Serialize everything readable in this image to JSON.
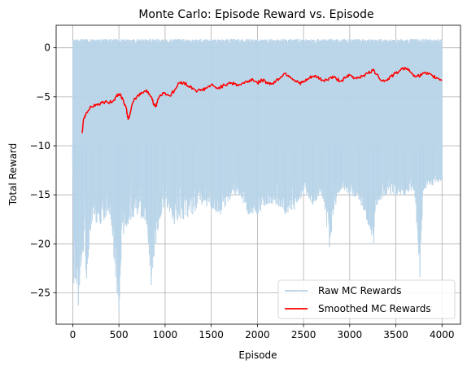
{
  "chart_data": {
    "type": "line",
    "title": "Monte Carlo: Episode Reward vs. Episode",
    "xlabel": "Episode",
    "ylabel": "Total Reward",
    "xlim": [
      -180,
      4200
    ],
    "ylim": [
      -28.2,
      2.3
    ],
    "xticks": [
      0,
      500,
      1000,
      1500,
      2000,
      2500,
      3000,
      3500,
      4000
    ],
    "yticks": [
      0,
      -5,
      -10,
      -15,
      -20,
      -25
    ],
    "grid": true,
    "legend_position": "lower-right",
    "series": [
      {
        "name": "Raw MC Rewards",
        "color": "#b7d3e8",
        "upper_envelope": [
          [
            0,
            0.9
          ],
          [
            4000,
            0.9
          ]
        ],
        "lower_envelope": [
          [
            0,
            -12
          ],
          [
            10,
            -24
          ],
          [
            30,
            -23.5
          ],
          [
            60,
            -26.3
          ],
          [
            100,
            -21
          ],
          [
            150,
            -23.5
          ],
          [
            200,
            -18
          ],
          [
            300,
            -18
          ],
          [
            400,
            -17
          ],
          [
            480,
            -25
          ],
          [
            500,
            -26.9
          ],
          [
            550,
            -19
          ],
          [
            600,
            -18
          ],
          [
            700,
            -17
          ],
          [
            800,
            -18
          ],
          [
            850,
            -24.2
          ],
          [
            900,
            -20
          ],
          [
            1000,
            -16
          ],
          [
            1100,
            -18
          ],
          [
            1200,
            -17.5
          ],
          [
            1300,
            -17
          ],
          [
            1400,
            -16
          ],
          [
            1500,
            -16.5
          ],
          [
            1600,
            -17
          ],
          [
            1700,
            -15.5
          ],
          [
            1800,
            -15
          ],
          [
            1900,
            -17
          ],
          [
            2000,
            -17
          ],
          [
            2100,
            -16
          ],
          [
            2200,
            -16
          ],
          [
            2300,
            -17
          ],
          [
            2400,
            -16.5
          ],
          [
            2500,
            -15
          ],
          [
            2600,
            -16
          ],
          [
            2700,
            -15
          ],
          [
            2780,
            -20.3
          ],
          [
            2850,
            -16
          ],
          [
            2900,
            -14.5
          ],
          [
            3000,
            -15
          ],
          [
            3100,
            -15.5
          ],
          [
            3200,
            -18
          ],
          [
            3260,
            -19.9
          ],
          [
            3300,
            -16
          ],
          [
            3400,
            -15
          ],
          [
            3500,
            -15
          ],
          [
            3600,
            -15
          ],
          [
            3700,
            -14.5
          ],
          [
            3760,
            -23.4
          ],
          [
            3800,
            -14.5
          ],
          [
            3900,
            -14
          ],
          [
            4000,
            -13.5
          ]
        ]
      },
      {
        "name": "Smoothed MC Rewards",
        "color": "#ff0000",
        "points": [
          [
            100,
            -8.7
          ],
          [
            120,
            -7.2
          ],
          [
            150,
            -6.6
          ],
          [
            200,
            -6.0
          ],
          [
            250,
            -5.8
          ],
          [
            300,
            -5.7
          ],
          [
            350,
            -5.5
          ],
          [
            400,
            -5.6
          ],
          [
            450,
            -5.3
          ],
          [
            480,
            -4.8
          ],
          [
            510,
            -4.7
          ],
          [
            550,
            -5.4
          ],
          [
            580,
            -6.2
          ],
          [
            600,
            -7.3
          ],
          [
            620,
            -6.8
          ],
          [
            650,
            -5.6
          ],
          [
            700,
            -4.9
          ],
          [
            750,
            -4.6
          ],
          [
            800,
            -4.3
          ],
          [
            850,
            -5.0
          ],
          [
            880,
            -5.8
          ],
          [
            900,
            -6.0
          ],
          [
            920,
            -5.3
          ],
          [
            950,
            -4.8
          ],
          [
            1000,
            -4.6
          ],
          [
            1050,
            -4.9
          ],
          [
            1100,
            -4.4
          ],
          [
            1150,
            -3.6
          ],
          [
            1200,
            -3.5
          ],
          [
            1250,
            -3.9
          ],
          [
            1300,
            -4.1
          ],
          [
            1350,
            -4.4
          ],
          [
            1400,
            -4.3
          ],
          [
            1450,
            -4.1
          ],
          [
            1500,
            -3.8
          ],
          [
            1550,
            -4.1
          ],
          [
            1600,
            -4.0
          ],
          [
            1650,
            -3.8
          ],
          [
            1700,
            -3.5
          ],
          [
            1750,
            -3.7
          ],
          [
            1800,
            -3.8
          ],
          [
            1850,
            -3.6
          ],
          [
            1900,
            -3.4
          ],
          [
            1950,
            -3.2
          ],
          [
            2000,
            -3.6
          ],
          [
            2050,
            -3.3
          ],
          [
            2100,
            -3.5
          ],
          [
            2150,
            -3.7
          ],
          [
            2200,
            -3.4
          ],
          [
            2250,
            -3.0
          ],
          [
            2300,
            -2.6
          ],
          [
            2350,
            -2.9
          ],
          [
            2400,
            -3.3
          ],
          [
            2450,
            -3.6
          ],
          [
            2500,
            -3.5
          ],
          [
            2550,
            -3.2
          ],
          [
            2600,
            -2.9
          ],
          [
            2650,
            -3.0
          ],
          [
            2700,
            -3.3
          ],
          [
            2750,
            -3.3
          ],
          [
            2800,
            -3.0
          ],
          [
            2850,
            -3.1
          ],
          [
            2900,
            -3.4
          ],
          [
            2950,
            -3.1
          ],
          [
            3000,
            -2.8
          ],
          [
            3050,
            -3.1
          ],
          [
            3100,
            -3.0
          ],
          [
            3150,
            -2.8
          ],
          [
            3200,
            -2.6
          ],
          [
            3250,
            -2.3
          ],
          [
            3300,
            -2.7
          ],
          [
            3350,
            -3.4
          ],
          [
            3400,
            -3.3
          ],
          [
            3450,
            -2.9
          ],
          [
            3500,
            -2.6
          ],
          [
            3550,
            -2.3
          ],
          [
            3600,
            -2.0
          ],
          [
            3650,
            -2.4
          ],
          [
            3700,
            -2.8
          ],
          [
            3750,
            -2.9
          ],
          [
            3800,
            -2.6
          ],
          [
            3850,
            -2.7
          ],
          [
            3900,
            -2.9
          ],
          [
            3950,
            -3.1
          ],
          [
            4000,
            -3.3
          ]
        ]
      }
    ]
  }
}
